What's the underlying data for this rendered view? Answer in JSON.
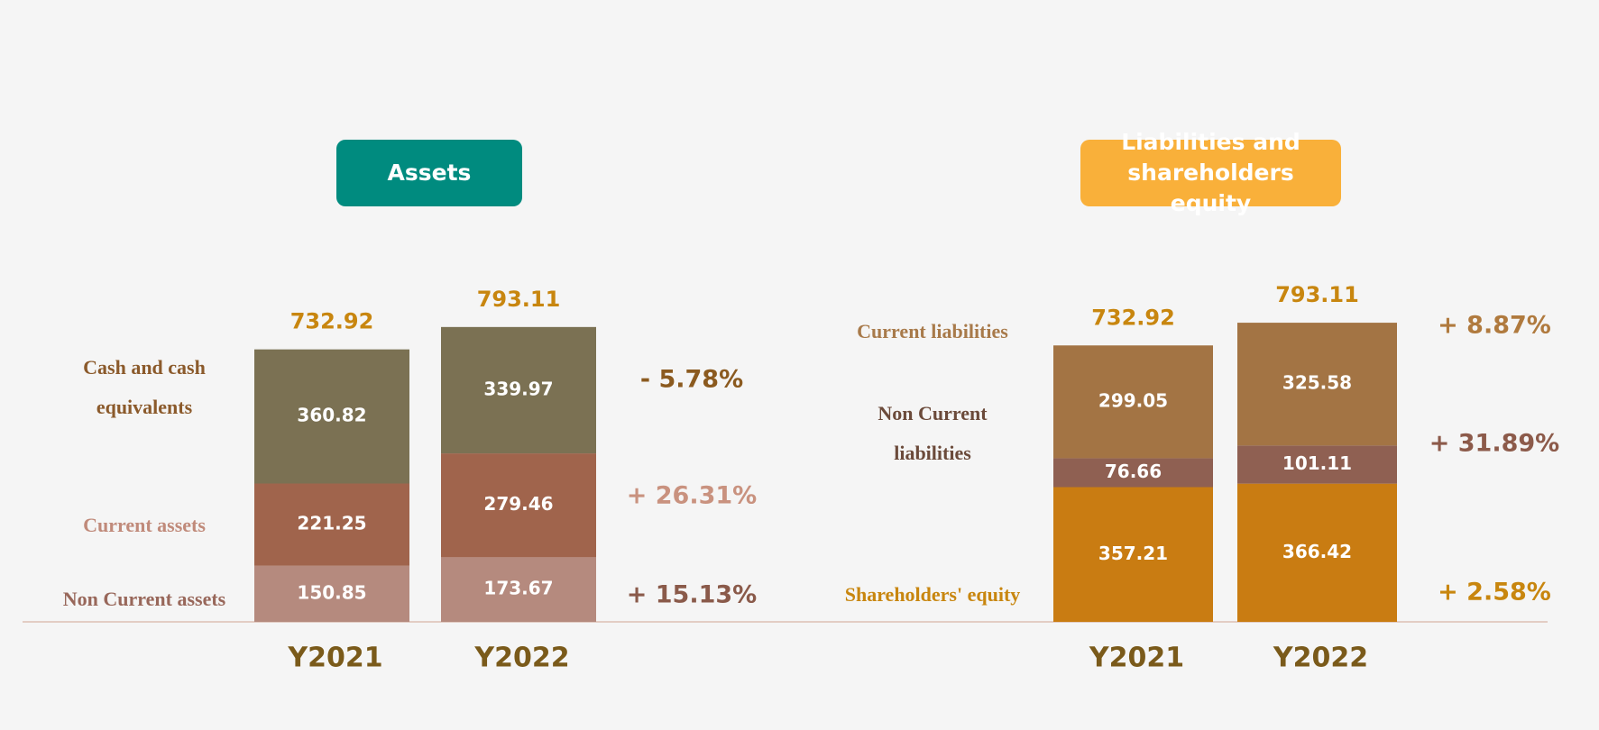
{
  "chart_data": [
    {
      "type": "bar",
      "stacked": true,
      "title": "Assets",
      "badge_color": "#008b7f",
      "categories": [
        "Y2021",
        "Y2022"
      ],
      "totals": [
        732.92,
        793.11
      ],
      "series": [
        {
          "name": "Non Current assets",
          "color": "#b58a7e",
          "label_color": "#98675a",
          "change_color": "#8a5a4a",
          "values": [
            150.85,
            173.67
          ],
          "change": "+ 15.13%"
        },
        {
          "name": "Current assets",
          "color": "#a0644c",
          "label_color": "#c08a7a",
          "change_color": "#c9927f",
          "values": [
            221.25,
            279.46
          ],
          "change": "+ 26.31%"
        },
        {
          "name": "Cash and cash equivalents",
          "color": "#7b7153",
          "label_color": "#8b5a2b",
          "change_color": "#8b5a1f",
          "values": [
            360.82,
            339.97
          ],
          "change": "- 5.78%"
        }
      ]
    },
    {
      "type": "bar",
      "stacked": true,
      "title": "Liabilities and shareholders equity",
      "badge_color": "#f9b03a",
      "categories": [
        "Y2021",
        "Y2022"
      ],
      "totals": [
        732.92,
        793.11
      ],
      "series": [
        {
          "name": "Shareholders' equity",
          "color": "#c97c12",
          "label_color": "#c8860f",
          "change_color": "#c8860f",
          "values": [
            357.21,
            366.42
          ],
          "change": "+ 2.58%"
        },
        {
          "name": "Non Current liabilities",
          "color": "#8f6052",
          "label_color": "#6b4a3a",
          "change_color": "#8c5a4a",
          "values": [
            76.66,
            101.11
          ],
          "change": "+ 31.89%"
        },
        {
          "name": "Current liabilities",
          "color": "#a37444",
          "label_color": "#a87a4a",
          "change_color": "#b07a3e",
          "values": [
            299.05,
            325.58
          ],
          "change": "+ 8.87%"
        }
      ]
    }
  ]
}
